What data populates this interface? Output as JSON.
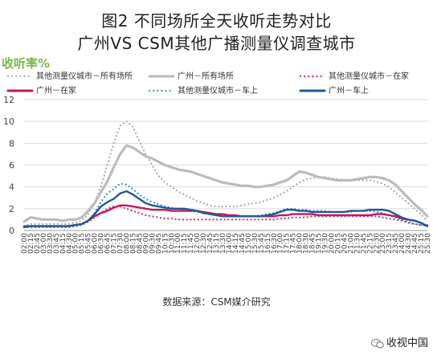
{
  "title_line1": "图2  不同场所全天收听走势对比",
  "title_line2": "广州VS  CSM其他广播测量仪调查城市",
  "source": "数据来源：CSM媒介研究",
  "watermark": "收视中国",
  "chart_data": {
    "type": "line",
    "ylabel": "收听率%",
    "ylim": [
      0,
      12
    ],
    "yticks": [
      0,
      2,
      4,
      6,
      8,
      10,
      12
    ],
    "grid": true,
    "legend_position": "top",
    "categories": [
      "02:00",
      "02:15",
      "02:45",
      "03:00",
      "03:30",
      "03:45",
      "04:15",
      "04:30",
      "05:00",
      "05:15",
      "05:45",
      "06:00",
      "06:30",
      "06:45",
      "07:15",
      "07:30",
      "08:00",
      "08:15",
      "08:45",
      "09:00",
      "09:30",
      "09:45",
      "10:15",
      "10:30",
      "11:00",
      "11:15",
      "11:45",
      "12:00",
      "12:30",
      "12:45",
      "13:15",
      "13:30",
      "14:00",
      "14:15",
      "14:45",
      "15:00",
      "15:30",
      "15:45",
      "16:15",
      "16:30",
      "17:00",
      "17:15",
      "17:45",
      "18:00",
      "18:30",
      "18:45",
      "19:15",
      "19:30",
      "20:00",
      "20:15",
      "20:45",
      "21:00",
      "21:30",
      "21:45",
      "22:15",
      "22:30",
      "23:00",
      "23:15",
      "23:45",
      "24:00",
      "24:30",
      "24:45",
      "25:15",
      "25:30"
    ],
    "series": [
      {
        "name": "其他测量仪城市－所有场所",
        "color": "#aaaaaa",
        "style": "dotted",
        "values": [
          0.4,
          0.6,
          0.6,
          0.6,
          0.6,
          0.6,
          0.6,
          0.6,
          0.7,
          0.9,
          1.5,
          2.5,
          4,
          6,
          8,
          9.6,
          10,
          9.5,
          8.2,
          7,
          6,
          5,
          4.4,
          4,
          3.6,
          3.3,
          3,
          2.7,
          2.5,
          2.3,
          2.2,
          2.2,
          2.2,
          2.2,
          2.3,
          2.4,
          2.5,
          2.6,
          2.8,
          3,
          3.3,
          3.6,
          4,
          4.4,
          4.7,
          4.8,
          4.9,
          4.9,
          4.8,
          4.7,
          4.6,
          4.6,
          4.6,
          4.6,
          4.6,
          4.5,
          4.3,
          4,
          3.5,
          3,
          2.5,
          2,
          1.5,
          0.9
        ]
      },
      {
        "name": "广州－所有场所",
        "color": "#bbbbbb",
        "style": "solid",
        "values": [
          0.8,
          1.2,
          1.1,
          1.0,
          1.0,
          1.0,
          0.9,
          1.0,
          1.0,
          1.2,
          1.8,
          2.5,
          3.5,
          4.5,
          5.8,
          7.0,
          7.8,
          7.6,
          7.2,
          6.8,
          6.6,
          6.3,
          6.0,
          5.8,
          5.6,
          5.5,
          5.4,
          5.2,
          5.0,
          4.8,
          4.6,
          4.4,
          4.3,
          4.2,
          4.1,
          4.1,
          4.0,
          4.0,
          4.1,
          4.2,
          4.4,
          4.6,
          5.0,
          5.4,
          5.3,
          5.1,
          4.9,
          4.8,
          4.7,
          4.6,
          4.6,
          4.6,
          4.7,
          4.8,
          4.9,
          4.9,
          4.8,
          4.6,
          4.2,
          3.6,
          3.0,
          2.4,
          1.9,
          1.3
        ]
      },
      {
        "name": "其他测量仪城市－在家",
        "color": "#d0286e",
        "style": "dotted",
        "values": [
          0.3,
          0.3,
          0.3,
          0.3,
          0.3,
          0.3,
          0.3,
          0.3,
          0.4,
          0.5,
          0.8,
          1.2,
          1.6,
          2.0,
          2.2,
          2.2,
          2.0,
          1.8,
          1.6,
          1.4,
          1.3,
          1.2,
          1.1,
          1.1,
          1.0,
          1.0,
          1.0,
          1.0,
          1.0,
          1.0,
          1.0,
          1.0,
          1.0,
          1.0,
          1.0,
          1.0,
          1.0,
          1.0,
          1.0,
          1.0,
          1.1,
          1.1,
          1.2,
          1.2,
          1.2,
          1.3,
          1.3,
          1.3,
          1.3,
          1.3,
          1.3,
          1.3,
          1.3,
          1.3,
          1.3,
          1.3,
          1.2,
          1.1,
          1.0,
          0.9,
          0.7,
          0.6,
          0.5,
          0.5
        ]
      },
      {
        "name": "广州－在家",
        "color": "#c2185b",
        "style": "solid",
        "values": [
          0.4,
          0.4,
          0.4,
          0.4,
          0.4,
          0.4,
          0.4,
          0.4,
          0.5,
          0.6,
          0.9,
          1.3,
          1.6,
          1.8,
          2.1,
          2.3,
          2.3,
          2.2,
          2.1,
          2.0,
          1.9,
          1.9,
          1.9,
          1.8,
          1.8,
          1.8,
          1.8,
          1.8,
          1.7,
          1.6,
          1.5,
          1.5,
          1.4,
          1.4,
          1.3,
          1.3,
          1.3,
          1.3,
          1.3,
          1.3,
          1.4,
          1.4,
          1.5,
          1.5,
          1.5,
          1.5,
          1.4,
          1.4,
          1.4,
          1.4,
          1.4,
          1.4,
          1.4,
          1.4,
          1.4,
          1.5,
          1.5,
          1.4,
          1.3,
          1.1,
          1.0,
          0.9,
          0.7,
          0.4
        ]
      },
      {
        "name": "其他测量仪城市－车上",
        "color": "#3a8fd0",
        "style": "dotted",
        "values": [
          0.3,
          0.3,
          0.3,
          0.3,
          0.3,
          0.3,
          0.3,
          0.3,
          0.4,
          0.5,
          0.9,
          1.6,
          2.6,
          3.4,
          3.8,
          4.3,
          4.2,
          3.8,
          3.3,
          2.9,
          2.6,
          2.4,
          2.2,
          2.1,
          2.0,
          1.9,
          1.8,
          1.7,
          1.6,
          1.5,
          1.4,
          1.3,
          1.3,
          1.3,
          1.3,
          1.3,
          1.3,
          1.4,
          1.5,
          1.6,
          1.8,
          2.0,
          2.0,
          1.9,
          1.9,
          1.8,
          1.8,
          1.8,
          1.7,
          1.7,
          1.7,
          1.7,
          1.8,
          1.8,
          1.8,
          1.7,
          1.6,
          1.4,
          1.2,
          1.0,
          0.8,
          0.6,
          0.5,
          0.4
        ]
      },
      {
        "name": "广州－车上",
        "color": "#1f5a96",
        "style": "solid",
        "values": [
          0.3,
          0.4,
          0.4,
          0.4,
          0.4,
          0.4,
          0.4,
          0.4,
          0.5,
          0.6,
          0.9,
          1.5,
          2.2,
          2.6,
          2.9,
          3.4,
          3.6,
          3.3,
          2.9,
          2.5,
          2.3,
          2.2,
          2.1,
          2.0,
          2.0,
          2.0,
          1.9,
          1.8,
          1.6,
          1.5,
          1.4,
          1.3,
          1.3,
          1.3,
          1.3,
          1.3,
          1.3,
          1.3,
          1.4,
          1.5,
          1.7,
          1.9,
          1.9,
          1.8,
          1.8,
          1.7,
          1.7,
          1.7,
          1.7,
          1.7,
          1.7,
          1.8,
          1.8,
          1.8,
          1.9,
          1.9,
          1.9,
          1.8,
          1.5,
          1.2,
          1.0,
          0.9,
          0.7,
          0.4
        ]
      }
    ]
  }
}
